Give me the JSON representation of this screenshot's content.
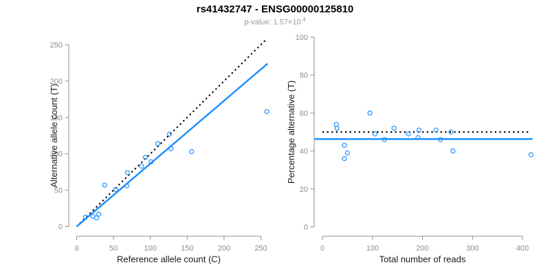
{
  "figure": {
    "title": "rs41432747 - ENSG00000125810",
    "subtitle_prefix": "p-value: ",
    "subtitle_mantissa": "1.57×10",
    "subtitle_exponent": "-4",
    "colors": {
      "background": "#FFFFFF",
      "accent_blue": "#1E90FF",
      "identity_black": "#000000",
      "axis_line_gray": "#999999",
      "tick_text_gray": "#8C8C8C",
      "axis_label_dark": "#1A1A1A",
      "subtitle_gray": "#9A9A9A"
    }
  },
  "chart_data": [
    {
      "type": "scatter",
      "name": "allele-counts",
      "xlabel": "Reference allele count (C)",
      "ylabel": "Alternative allele count (T)",
      "xticks": [
        0,
        50,
        100,
        150,
        200,
        250
      ],
      "yticks": [
        0,
        50,
        100,
        150,
        200,
        250
      ],
      "xlim": [
        0,
        250
      ],
      "ylim": [
        0,
        250
      ],
      "grid": false,
      "legend": false,
      "points": [
        [
          12,
          13
        ],
        [
          22,
          14
        ],
        [
          27,
          12
        ],
        [
          30,
          17
        ],
        [
          38,
          57
        ],
        [
          53,
          51
        ],
        [
          68,
          56
        ],
        [
          69,
          74
        ],
        [
          88,
          83
        ],
        [
          93,
          95
        ],
        [
          101,
          89
        ],
        [
          110,
          114
        ],
        [
          126,
          127
        ],
        [
          128,
          107
        ],
        [
          156,
          103
        ],
        [
          258,
          158
        ]
      ],
      "lines": [
        {
          "name": "identity-line",
          "style": "dotted",
          "color": "#000000",
          "from": [
            0,
            0
          ],
          "to": [
            258,
            258
          ]
        },
        {
          "name": "regression-line",
          "style": "solid",
          "color": "#1E90FF",
          "from": [
            0,
            0
          ],
          "to": [
            259,
            224
          ]
        }
      ]
    },
    {
      "type": "scatter",
      "name": "percentage-alternative",
      "xlabel": "Total number of reads",
      "ylabel": "Percentage alternative (T)",
      "xticks": [
        0,
        100,
        200,
        300,
        400
      ],
      "yticks": [
        0,
        20,
        40,
        60,
        80,
        100
      ],
      "xlim": [
        0,
        400
      ],
      "ylim": [
        0,
        100
      ],
      "grid": false,
      "legend": false,
      "points": [
        [
          28,
          54
        ],
        [
          29,
          52
        ],
        [
          44,
          43
        ],
        [
          44,
          36
        ],
        [
          50,
          39
        ],
        [
          95,
          60
        ],
        [
          105,
          49
        ],
        [
          124,
          46
        ],
        [
          143,
          52
        ],
        [
          172,
          49
        ],
        [
          191,
          47
        ],
        [
          193,
          51
        ],
        [
          227,
          51
        ],
        [
          236,
          46
        ],
        [
          257,
          50
        ],
        [
          261,
          40
        ],
        [
          417,
          38
        ]
      ],
      "lines": [
        {
          "name": "expected-50pct-line",
          "style": "dotted",
          "color": "#000000",
          "from": [
            0,
            50
          ],
          "to": [
            414,
            50
          ]
        },
        {
          "name": "observed-mean-line",
          "style": "solid",
          "color": "#1E90FF",
          "from": [
            -16,
            46.3
          ],
          "to": [
            420,
            46.3
          ]
        }
      ]
    }
  ]
}
